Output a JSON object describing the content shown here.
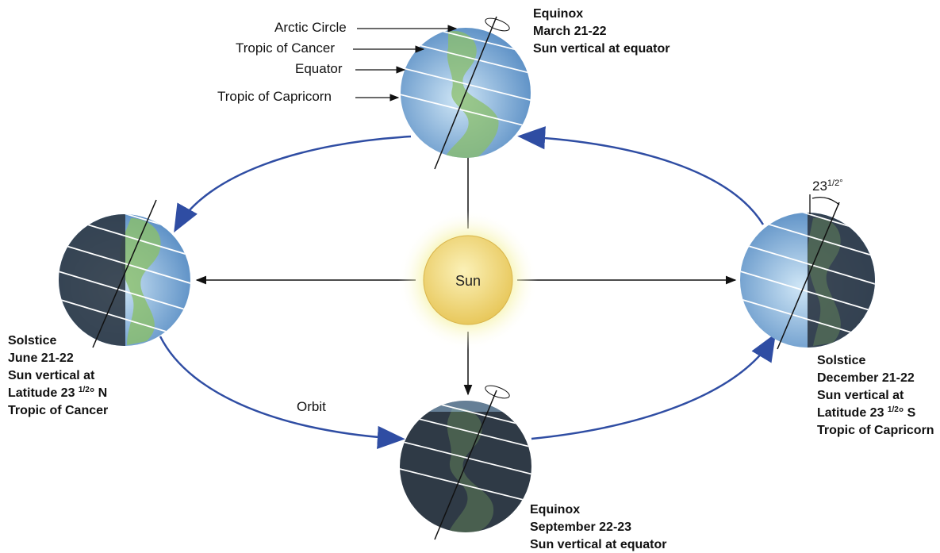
{
  "colors": {
    "orbit": "#2f4da3",
    "ray": "#111111",
    "sun_core": "#fbf1b8",
    "sun_edge": "#e8c85c",
    "ocean_light": "#cfe6f6",
    "ocean_dark": "#4f86c0",
    "night": "#2f3a46",
    "land": "#8bbf6a"
  },
  "sun": {
    "label": "Sun"
  },
  "orbit": {
    "label": "Orbit"
  },
  "latitude_labels": {
    "arctic_circle": "Arctic Circle",
    "tropic_of_cancer": "Tropic of Cancer",
    "equator": "Equator",
    "tropic_of_capricorn": "Tropic of Capricorn"
  },
  "tilt_angle": {
    "main": "23",
    "fraction": "1/2",
    "degree": "°"
  },
  "stages": {
    "march_equinox": {
      "line1": "Equinox",
      "line2": "March 21-22",
      "line3": "Sun vertical at equator"
    },
    "june_solstice": {
      "line1": "Solstice",
      "line2": "June 21-22",
      "line3": "Sun vertical at",
      "lat_prefix": "Latitude 23",
      "lat_frac": "1/2",
      "lat_suffix": "° N",
      "line5": "Tropic of Cancer"
    },
    "september_equinox": {
      "line1": "Equinox",
      "line2": "September 22-23",
      "line3": "Sun vertical at equator"
    },
    "december_solstice": {
      "line1": "Solstice",
      "line2": "December 21-22",
      "line3": "Sun vertical at",
      "lat_prefix": "Latitude 23",
      "lat_frac": "1/2",
      "lat_suffix": "° S",
      "line5": "Tropic of Capricorn"
    }
  }
}
